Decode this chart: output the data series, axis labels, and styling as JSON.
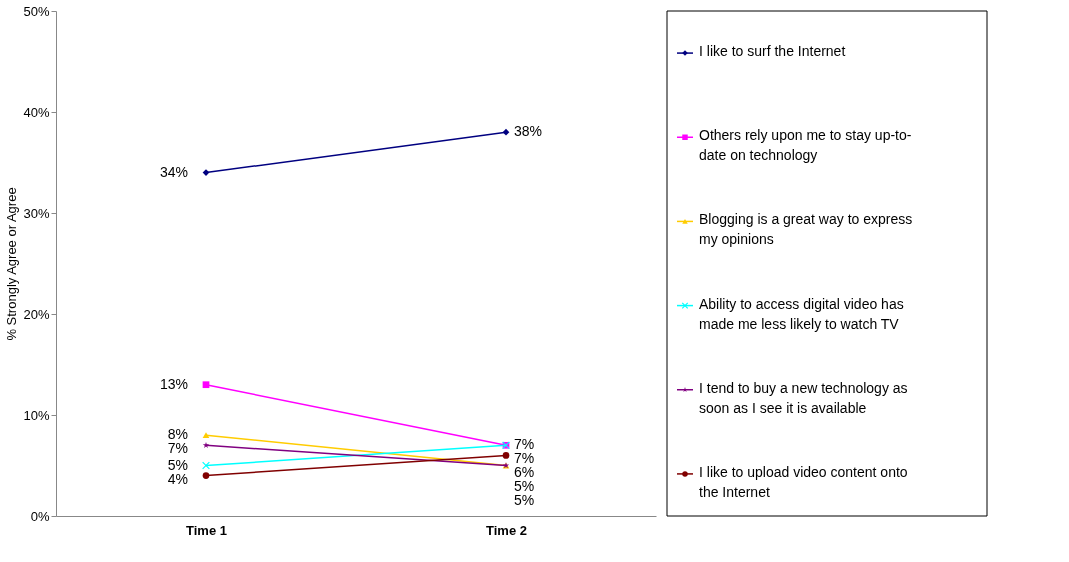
{
  "chart_data": {
    "type": "line",
    "ylabel": "% Strongly Agree or Agree",
    "categories": [
      "Time 1",
      "Time 2"
    ],
    "series": [
      {
        "name": "I like to surf the Internet",
        "color": "#000080",
        "marker": "diamond",
        "values": [
          34,
          38
        ],
        "value_labels": [
          "34%",
          "38%"
        ]
      },
      {
        "name": "Others rely upon me to stay up-to-date on technology",
        "color": "#ff00ff",
        "marker": "square",
        "values": [
          13,
          7
        ],
        "value_labels": [
          "13%",
          "7%"
        ]
      },
      {
        "name": "Blogging is a great way to express my opinions",
        "color": "#ffcc00",
        "marker": "triangle",
        "values": [
          8,
          5
        ],
        "value_labels": [
          "8%",
          "5%"
        ]
      },
      {
        "name": "Ability to access digital video has made me less likely to watch TV",
        "color": "#00ffff",
        "marker": "cross",
        "values": [
          5,
          7
        ],
        "value_labels": [
          "5%",
          "7%"
        ]
      },
      {
        "name": "I tend to buy a new technology as soon as I see it is available",
        "color": "#800080",
        "marker": "star",
        "values": [
          7,
          5
        ],
        "value_labels": [
          "7%",
          "5%"
        ]
      },
      {
        "name": "I like to upload video content onto the Internet",
        "color": "#800000",
        "marker": "circle",
        "values": [
          4,
          6
        ],
        "value_labels": [
          "4%",
          "6%"
        ]
      }
    ],
    "ylim": [
      0,
      50
    ],
    "yticks": [
      {
        "value": 0,
        "label": "0%"
      },
      {
        "value": 10,
        "label": "10%"
      },
      {
        "value": 20,
        "label": "20%"
      },
      {
        "value": 30,
        "label": "30%"
      },
      {
        "value": 40,
        "label": "40%"
      },
      {
        "value": 50,
        "label": "50%"
      }
    ],
    "grid": false,
    "legend": "right"
  }
}
